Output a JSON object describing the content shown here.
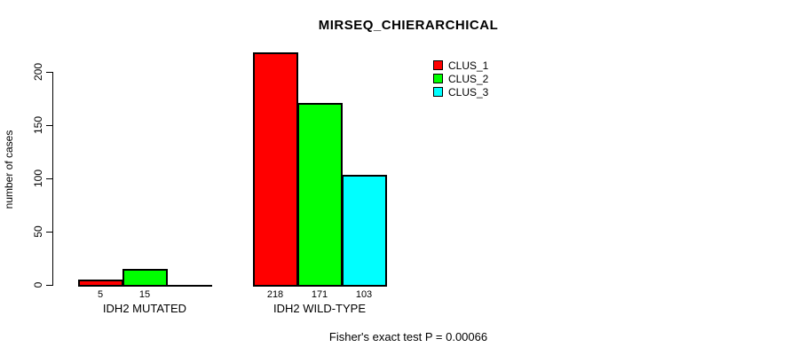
{
  "chart_data": {
    "type": "bar",
    "title": "MIRSEQ_CHIERARCHICAL",
    "ylabel": "number of cases",
    "xlabel": "",
    "categories": [
      "IDH2 MUTATED",
      "IDH2 WILD-TYPE"
    ],
    "series": [
      {
        "name": "CLUS_1",
        "color": "#ff0000",
        "values": [
          5,
          218
        ]
      },
      {
        "name": "CLUS_2",
        "color": "#00ff00",
        "values": [
          15,
          171
        ]
      },
      {
        "name": "CLUS_3",
        "color": "#00ffff",
        "values": [
          0,
          103
        ]
      }
    ],
    "value_labels": [
      [
        "5",
        "15",
        ""
      ],
      [
        "218",
        "171",
        "103"
      ]
    ],
    "yticks": [
      0,
      50,
      100,
      150,
      200
    ],
    "ylim": [
      0,
      225
    ],
    "grid": false,
    "legend_position": "top-right",
    "legend_entries": [
      "CLUS_1",
      "CLUS_2",
      "CLUS_3"
    ],
    "annotation": "Fisher's exact test P = 0.00066",
    "colors": {
      "bar_border": "#000000",
      "axis": "#000000",
      "background": "#ffffff"
    }
  }
}
